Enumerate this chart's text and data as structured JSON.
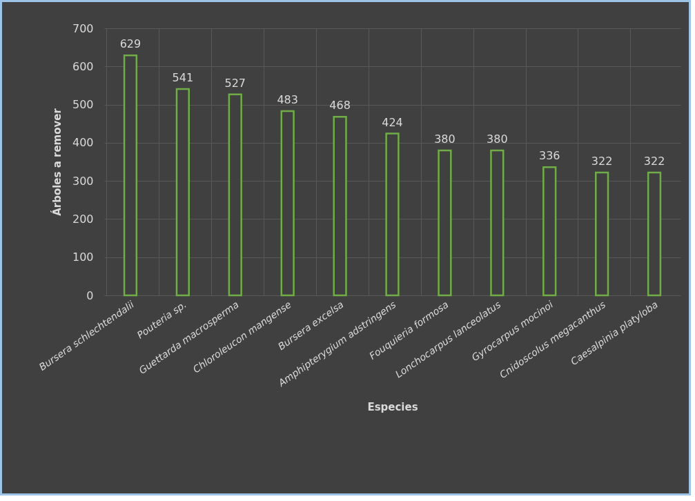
{
  "chart_data": {
    "type": "bar",
    "xlabel": "Especies",
    "ylabel": "Árboles a remover",
    "categories": [
      "Bursera schlechtendalii",
      "Pouteria sp.",
      "Guettarda macrosperma",
      "Chloroleucon mangense",
      "Bursera excelsa",
      "Amphipterygium adstringens",
      "Fouquieria  formosa",
      "Lonchocarpus lanceolatus",
      "Gyrocarpus mocinoi",
      "Cnidoscolus megacanthus",
      "Caesalpinia platyloba"
    ],
    "values": [
      629,
      541,
      527,
      483,
      468,
      424,
      380,
      380,
      336,
      322,
      322
    ],
    "color": "#70ad47",
    "ylim": [
      0,
      700
    ],
    "yticks": [
      0,
      100,
      200,
      300,
      400,
      500,
      600,
      700
    ],
    "grid": true,
    "data_labels": true
  }
}
